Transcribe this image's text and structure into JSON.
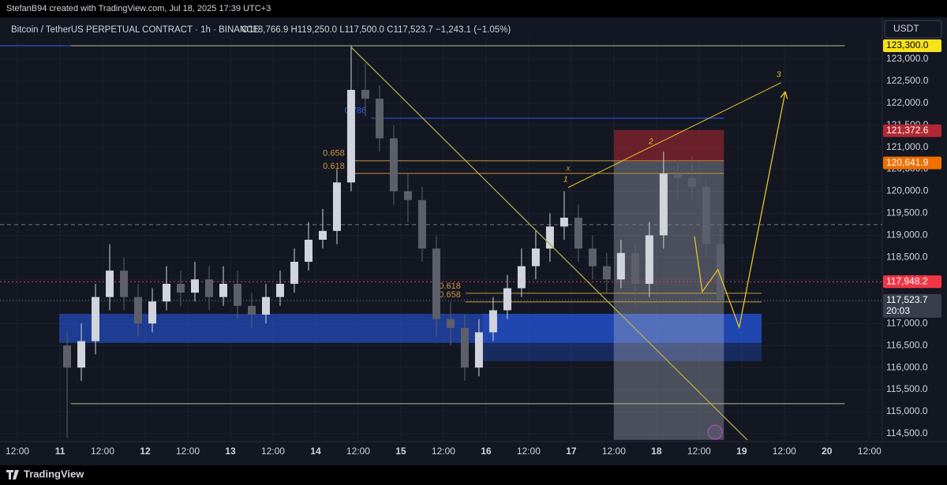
{
  "watermark": "StefanB94 created with TradingView.com, Jul 18, 2025 17:39 UTC+3",
  "footer": "TradingView",
  "chart_data": {
    "type": "candlestick",
    "title": "Bitcoin / TetherUS PERPETUAL CONTRACT · 1h · BINANCE",
    "ohlc_summary": "O118,766.9  H119,250.0  L117,500.0  C117,523.7  −1,243.1 (−1.05%)",
    "currency": "USDT",
    "x": [
      0,
      4,
      8,
      12,
      16,
      20,
      24,
      28,
      32,
      36,
      40,
      44,
      48,
      52,
      56,
      60,
      64,
      68,
      72,
      76,
      80,
      84,
      88,
      92,
      96,
      100,
      104,
      108,
      112,
      116,
      120,
      124,
      128,
      132,
      136,
      140,
      144,
      148,
      152,
      156,
      160,
      164,
      168,
      172,
      176,
      180,
      184
    ],
    "open": [
      116500,
      116000,
      116600,
      117600,
      118200,
      117600,
      117000,
      117500,
      117900,
      117700,
      118000,
      117600,
      117900,
      117400,
      117200,
      117600,
      117900,
      118400,
      118900,
      119100,
      120200,
      122300,
      122100,
      121200,
      120000,
      119800,
      118700,
      117100,
      116900,
      116000,
      116800,
      117300,
      117800,
      118300,
      118700,
      119200,
      119400,
      118700,
      118300,
      118000,
      118600,
      117900,
      119000,
      120400,
      120300,
      120100,
      118800
    ],
    "high": [
      116800,
      117000,
      117900,
      118800,
      118500,
      117900,
      117800,
      118300,
      118200,
      118400,
      118300,
      118300,
      118200,
      117700,
      117900,
      118200,
      118700,
      119300,
      119600,
      120500,
      123300,
      122900,
      122400,
      121500,
      120400,
      120100,
      119000,
      117500,
      117200,
      117100,
      117600,
      118100,
      118700,
      119100,
      119500,
      120000,
      119700,
      119000,
      118600,
      118900,
      118800,
      119300,
      120900,
      120700,
      120800,
      120300,
      119250
    ],
    "low": [
      114400,
      115700,
      116300,
      117300,
      117300,
      116700,
      116800,
      117300,
      117400,
      117500,
      117300,
      117400,
      117100,
      116900,
      117000,
      117400,
      117700,
      118200,
      118700,
      118800,
      120000,
      121700,
      120900,
      119700,
      119300,
      118400,
      116700,
      116500,
      115700,
      115800,
      116600,
      117100,
      117600,
      118000,
      118400,
      118900,
      118400,
      118000,
      117700,
      117800,
      117400,
      117600,
      118700,
      119800,
      119800,
      118500,
      117500
    ],
    "close": [
      116000,
      116600,
      117600,
      118200,
      117600,
      117000,
      117500,
      117900,
      117700,
      118000,
      117600,
      117900,
      117400,
      117200,
      117600,
      117900,
      118400,
      118900,
      119100,
      120200,
      122300,
      122100,
      121200,
      120000,
      119800,
      118700,
      117100,
      116900,
      116000,
      116800,
      117300,
      117800,
      118300,
      118700,
      119200,
      119400,
      118700,
      118300,
      118000,
      118600,
      117900,
      119000,
      120400,
      120300,
      120100,
      118800,
      117523.7
    ],
    "up_color": "#d1d4dc",
    "down_color": "#5d606b",
    "xlim": [
      -16.9,
      231.6
    ],
    "xticks": [
      {
        "value": -12,
        "label": "12:00"
      },
      {
        "value": 0,
        "label": "11"
      },
      {
        "value": 12,
        "label": "12:00"
      },
      {
        "value": 24,
        "label": "12"
      },
      {
        "value": 36,
        "label": "12:00"
      },
      {
        "value": 48,
        "label": "13"
      },
      {
        "value": 60,
        "label": "12:00"
      },
      {
        "value": 72,
        "label": "14"
      },
      {
        "value": 84,
        "label": "12:00"
      },
      {
        "value": 96,
        "label": "15"
      },
      {
        "value": 108,
        "label": "12:00"
      },
      {
        "value": 120,
        "label": "16"
      },
      {
        "value": 132,
        "label": "12:00"
      },
      {
        "value": 144,
        "label": "17"
      },
      {
        "value": 156,
        "label": "12:00"
      },
      {
        "value": 168,
        "label": "18"
      },
      {
        "value": 180,
        "label": "12:00"
      },
      {
        "value": 192,
        "label": "19"
      },
      {
        "value": 204,
        "label": "12:00"
      },
      {
        "value": 216,
        "label": "20"
      },
      {
        "value": 228,
        "label": "12:00"
      }
    ],
    "ylim": [
      114320,
      123480
    ],
    "yticks": [
      {
        "value": 114500,
        "label": "114,500.0"
      },
      {
        "value": 115000,
        "label": "115,000.0"
      },
      {
        "value": 115500,
        "label": "115,500.0"
      },
      {
        "value": 116000,
        "label": "116,000.0"
      },
      {
        "value": 116500,
        "label": "116,500.0"
      },
      {
        "value": 117000,
        "label": "117,000.0"
      },
      {
        "value": 117500,
        "label": "117,500.0"
      },
      {
        "value": 118000,
        "label": "118,000.0"
      },
      {
        "value": 118500,
        "label": "118,500.0"
      },
      {
        "value": 119000,
        "label": "119,000.0"
      },
      {
        "value": 119500,
        "label": "119,500.0"
      },
      {
        "value": 120000,
        "label": "120,000.0"
      },
      {
        "value": 120500,
        "label": "120,500.0"
      },
      {
        "value": 121000,
        "label": "121,000.0"
      },
      {
        "value": 121500,
        "label": "121,500.0"
      },
      {
        "value": 122000,
        "label": "122,000.0"
      },
      {
        "value": 122500,
        "label": "122,500.0"
      },
      {
        "value": 123000,
        "label": "123,000.0"
      }
    ],
    "grid": true,
    "price_labels": [
      {
        "value": 123300,
        "label": "123,300.0",
        "color": "#f7e21b",
        "text_color": "#000000"
      },
      {
        "value": 121372.6,
        "label": "121,372.6",
        "color": "#b22833",
        "text_color": "#ffffff"
      },
      {
        "value": 120641.9,
        "label": "120,641.9",
        "color": "#f06f00",
        "text_color": "#ffffff"
      },
      {
        "value": 117948.2,
        "label": "117,948.2",
        "color": "#f23645",
        "text_color": "#ffffff"
      },
      {
        "value": 117523.7,
        "label": "117,523.7",
        "color": "#3a3e4c",
        "text_color": "#ffffff",
        "sub": "20:03"
      }
    ],
    "zones": [
      {
        "from": -0.2,
        "to": 197.6,
        "top": 117220,
        "bottom": 116560,
        "color": "rgba(41,98,255,0.5)"
      },
      {
        "from": 118.9,
        "to": 197.6,
        "top": 117220,
        "bottom": 116145,
        "color": "rgba(41,98,255,0.28)"
      },
      {
        "from": 156,
        "to": 187,
        "top": 121390,
        "bottom": 120673,
        "color": "rgba(178,40,51,0.55)"
      },
      {
        "from": 156,
        "to": 187,
        "top": 120673,
        "bottom": 114360,
        "color": "rgba(190,195,210,0.33)"
      }
    ],
    "levels": [
      {
        "price": 123300,
        "from": -16.9,
        "to": 82,
        "color": "#2962ff"
      },
      {
        "price": 123300,
        "from": 3,
        "to": 221,
        "color": "#b9b98a"
      },
      {
        "price": 121658,
        "from": 87.6,
        "to": 187,
        "color": "#2962ff",
        "label": "0.786"
      },
      {
        "price": 120692,
        "from": 81.5,
        "to": 187,
        "color": "#c8963c",
        "label": "0.658"
      },
      {
        "price": 120405,
        "from": 81.5,
        "to": 187,
        "color": "#c8963c",
        "label": "0.618",
        "mid_label": "x"
      },
      {
        "price": 117685,
        "from": 114.2,
        "to": 197.6,
        "color": "#c8963c",
        "label": "0.618"
      },
      {
        "price": 117488,
        "from": 114.2,
        "to": 197.6,
        "color": "#c8963c",
        "label": "0.658"
      },
      {
        "price": 115180,
        "from": 3,
        "to": 221,
        "color": "#b9b98a"
      },
      {
        "price": 119242,
        "from": -16.9,
        "to": 231.6,
        "color": "#787b86",
        "dash": "5 4"
      },
      {
        "price": 117948.2,
        "from": -16.9,
        "to": 231.6,
        "color": "#f23645",
        "dash": "2 3"
      },
      {
        "price": 117523.7,
        "from": -16.9,
        "to": 231.6,
        "color": "#787b86",
        "dash": "1 3"
      }
    ],
    "paths": [
      {
        "x": [
          82,
          193.6
        ],
        "y": [
          123268,
          114357
        ],
        "color": "#b9a94a"
      },
      {
        "x": [
          178.7,
          180.9,
          185.3,
          191.3,
          204.2
        ],
        "y": [
          118974,
          117721,
          118222,
          116915,
          122231
        ],
        "color": "#e6c229",
        "arrow": true
      }
    ],
    "wave": {
      "x": [
        143.1,
        167.1,
        203.1
      ],
      "y": [
        120083,
        120941,
        122463
      ],
      "labels": [
        "1",
        "2",
        "3"
      ],
      "color": "#e6c229"
    }
  }
}
